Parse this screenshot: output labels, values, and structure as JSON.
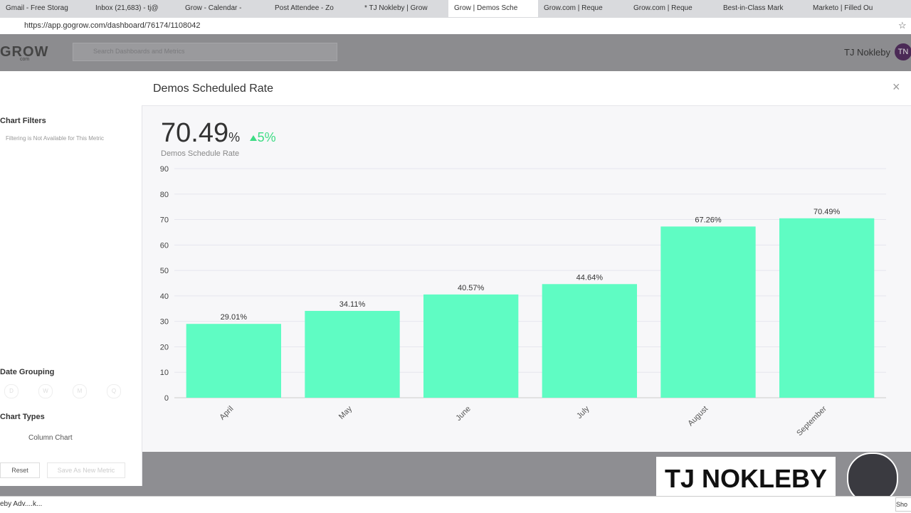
{
  "browser": {
    "tabs": [
      "Gmail - Free Storag",
      "Inbox (21,683) - tj@",
      "Grow - Calendar - ",
      "Post Attendee - Zo",
      "* TJ Nokleby | Grow",
      "Grow | Demos Sche",
      "Grow.com | Reque",
      "Grow.com | Reque",
      "Best-in-Class Mark",
      "Marketo | Filled Ou"
    ],
    "url": "https://app.gogrow.com/dashboard/76174/1108042"
  },
  "header": {
    "logo": "GROW",
    "logo_sub": "com",
    "search_placeholder": "Search Dashboards and Metrics",
    "user": "TJ Nokleby",
    "avatar": "TN"
  },
  "panel": {
    "title": "Demos Scheduled Rate"
  },
  "sidebar": {
    "filters_title": "Chart Filters",
    "filters_note": "Filtering is Not Available for This Metric",
    "grouping_title": "Date Grouping",
    "grouping_options": [
      "D",
      "W",
      "M",
      "Q"
    ],
    "types_title": "Chart Types",
    "chart_type": "Column Chart",
    "reset": "Reset",
    "save": "Save As New Metric"
  },
  "kpi": {
    "value": "70.49",
    "unit": "%",
    "change": "5%",
    "label": "Demos Schedule Rate"
  },
  "chart_data": {
    "type": "bar",
    "categories": [
      "April",
      "May",
      "June",
      "July",
      "August",
      "September"
    ],
    "values": [
      29.01,
      34.11,
      40.57,
      44.64,
      67.26,
      70.49
    ],
    "value_labels": [
      "29.01%",
      "34.11%",
      "40.57%",
      "44.64%",
      "67.26%",
      "70.49%"
    ],
    "color": "#5ffcc3",
    "ylim": [
      0,
      90
    ],
    "yticks": [
      0,
      10,
      20,
      30,
      40,
      50,
      60,
      70,
      80,
      90
    ],
    "grid": true
  },
  "overlay": {
    "name": "TJ NOKLEBY"
  },
  "downloads": {
    "item": "eby Adv....k...",
    "show": "Sho"
  }
}
